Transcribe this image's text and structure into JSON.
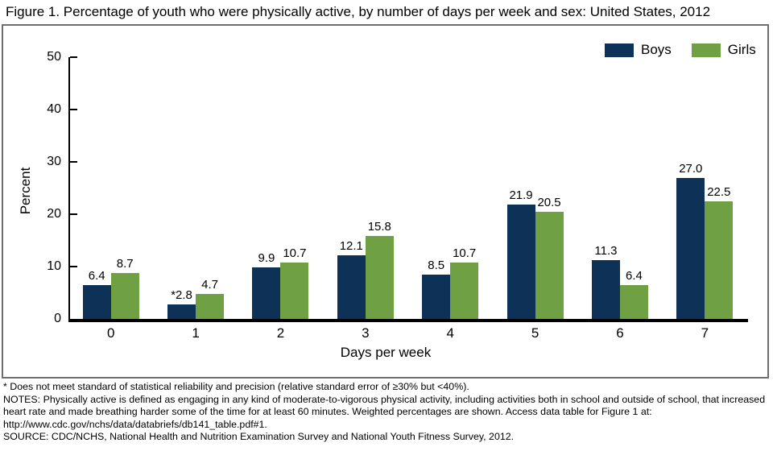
{
  "title": "Figure 1. Percentage of youth who were physically active, by number of days per week and sex: United States, 2012",
  "colors": {
    "boys": "#0E3158",
    "girls": "#6FA043",
    "axis": "#000000",
    "chart_border": "#6e6e6e"
  },
  "chart_data": {
    "type": "bar",
    "title": "Figure 1. Percentage of youth who were physically active, by number of days per week and sex: United States, 2012",
    "categories": [
      "0",
      "1",
      "2",
      "3",
      "4",
      "5",
      "6",
      "7"
    ],
    "series": [
      {
        "name": "Boys",
        "color": "#0E3158",
        "values": [
          6.4,
          2.8,
          9.9,
          12.1,
          8.5,
          21.9,
          11.3,
          27.0
        ],
        "labels": [
          "6.4",
          "*2.8",
          "9.9",
          "12.1",
          "8.5",
          "21.9",
          "11.3",
          "27.0"
        ]
      },
      {
        "name": "Girls",
        "color": "#6FA043",
        "values": [
          8.7,
          4.7,
          10.7,
          15.8,
          10.7,
          20.5,
          6.4,
          22.5
        ],
        "labels": [
          "8.7",
          "4.7",
          "10.7",
          "15.8",
          "10.7",
          "20.5",
          "6.4",
          "22.5"
        ]
      }
    ],
    "xlabel": "Days per week",
    "ylabel": "Percent",
    "ylim": [
      0,
      50
    ],
    "yticks": [
      0,
      10,
      20,
      30,
      40,
      50
    ],
    "legend_position": "top-right",
    "grid": false
  },
  "footnotes": {
    "asterisk": "* Does not meet standard of statistical reliability and precision (relative standard error of ≥30% but <40%).",
    "notes": "NOTES: Physically active is defined as engaging in any kind of moderate-to-vigorous physical activity, including activities both in school and outside of school, that increased heart rate and made breathing harder some of the time for at least 60 minutes. Weighted percentages are shown. Access data table for Figure 1 at: http://www.cdc.gov/nchs/data/databriefs/db141_table.pdf#1.",
    "source": "SOURCE: CDC/NCHS, National Health and Nutrition Examination Survey and National Youth Fitness Survey, 2012."
  }
}
